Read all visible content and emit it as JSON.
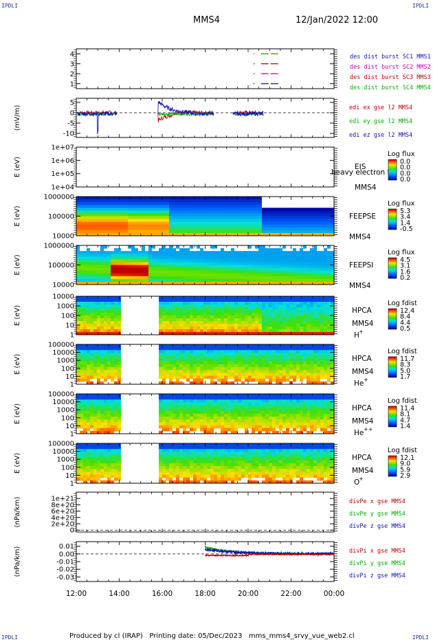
{
  "corners": {
    "tl": "IPDLI",
    "tr": "IPDLI",
    "bl": "IPDLI",
    "br": "IPDLI"
  },
  "header": {
    "spacecraft": "MMS4",
    "date_time": "12/Jan/2022 12:00"
  },
  "footer": {
    "produced_by": "Produced by cl (IRAP)",
    "printing_date": "Printing date: 05/Dec/2023",
    "script": "mms_mms4_srvy_vue_web2.cl"
  },
  "chart_data": [
    {
      "id": "burst",
      "type": "line",
      "ylim": [
        0.5,
        4.5
      ],
      "yticks": [
        "1",
        "2",
        "3",
        "4"
      ],
      "legend": [
        {
          "name": "des dist burst SC1 MMS1",
          "color": "#1010c0",
          "y": 1
        },
        {
          "name": "des dist burst SC2 MMS2",
          "color": "#c000c0",
          "y": 2
        },
        {
          "name": "des dist burst SC3 MMS3",
          "color": "#c00000",
          "y": 3
        },
        {
          "name": "des dist burst SC4 MMS4",
          "color": "#00b000",
          "y": 4
        }
      ],
      "segments": [
        {
          "y": 4,
          "color": "#00b000",
          "x": [
            [
              20.25,
              20.3
            ],
            [
              20.6,
              20.95
            ],
            [
              21.05,
              21.4
            ]
          ]
        },
        {
          "y": 3,
          "color": "#c00000",
          "x": [
            [
              20.25,
              20.3
            ],
            [
              20.6,
              20.95
            ],
            [
              21.05,
              21.4
            ]
          ]
        },
        {
          "y": 2,
          "color": "#c000c0",
          "x": [
            [
              20.25,
              20.3
            ],
            [
              20.6,
              20.95
            ],
            [
              21.05,
              21.4
            ]
          ]
        },
        {
          "y": 1,
          "color": "#1010c0",
          "x": [
            [
              20.25,
              20.3
            ],
            [
              20.6,
              20.95
            ],
            [
              21.05,
              21.4
            ]
          ]
        }
      ]
    },
    {
      "id": "edi",
      "type": "line",
      "ylabel": "(mV/m)",
      "ylim": [
        -12,
        7
      ],
      "yticks": [
        "-10",
        "-5",
        "0",
        "5"
      ],
      "zero_line": true,
      "legend": [
        {
          "name": "edi ex gse l2 MMS4",
          "color": "#c00000"
        },
        {
          "name": "edi ey gse l2 MMS4",
          "color": "#00b000"
        },
        {
          "name": "edi ez gse l2 MMS4",
          "color": "#1010c0"
        }
      ]
    },
    {
      "id": "eis",
      "type": "heatmap",
      "ylabel": "E (eV)",
      "yticks": [
        "1e+04",
        "1e+05",
        "1e+06",
        "1e+07"
      ],
      "instrument": "EIS",
      "spacecraft": "MMS4",
      "overlay": "heavy electron to",
      "cbar_title": "Log flux",
      "cbar_ticks": [
        "0.0",
        "0.0",
        "0.0",
        "0.0"
      ],
      "empty": true
    },
    {
      "id": "feepse",
      "type": "heatmap",
      "ylabel": "E (eV)",
      "yticks": [
        "10000",
        "100000",
        "1000000"
      ],
      "instrument": "FEEPSE",
      "spacecraft": "MMS4",
      "cbar_title": "Log flux",
      "cbar_ticks": [
        "5.3",
        "3.4",
        "1.4",
        "-0.5"
      ]
    },
    {
      "id": "feepsi",
      "type": "heatmap",
      "ylabel": "E (eV)",
      "yticks": [
        "10000",
        "100000",
        "1000000"
      ],
      "instrument": "FEEPSI",
      "spacecraft": "MMS4",
      "cbar_title": "Log flux",
      "cbar_ticks": [
        "4.5",
        "3.1",
        "1.6",
        "0.2"
      ]
    },
    {
      "id": "hpca-h",
      "type": "heatmap",
      "ylabel": "E (eV)",
      "yticks": [
        "1",
        "10",
        "100",
        "1000",
        "10000"
      ],
      "instrument": "HPCA",
      "spacecraft": "MMS4",
      "species": "H",
      "charge": "+",
      "cbar_title": "Log fdist",
      "cbar_ticks": [
        "12.4",
        "8.4",
        "4.4",
        "0.5"
      ],
      "gap": [
        14.05,
        15.8
      ]
    },
    {
      "id": "hpca-he",
      "type": "heatmap",
      "ylabel": "E (eV)",
      "yticks": [
        "1",
        "10",
        "100",
        "1000",
        "10000",
        "100000"
      ],
      "instrument": "HPCA",
      "spacecraft": "MMS4",
      "species": "He",
      "charge": "+",
      "cbar_title": "Log fdist",
      "cbar_ticks": [
        "11.7",
        "8.3",
        "5.0",
        "1.7"
      ],
      "gap": [
        14.05,
        15.8
      ]
    },
    {
      "id": "hpca-he2",
      "type": "heatmap",
      "ylabel": "E (eV)",
      "yticks": [
        "1",
        "10",
        "100",
        "1000",
        "10000",
        "100000"
      ],
      "instrument": "HPCA",
      "spacecraft": "MMS4",
      "species": "He",
      "charge": "++",
      "cbar_title": "Log fdist",
      "cbar_ticks": [
        "11.4",
        "8.1",
        "4.7",
        "1.4"
      ],
      "gap": [
        14.05,
        15.8
      ]
    },
    {
      "id": "hpca-o",
      "type": "heatmap",
      "ylabel": "E (eV)",
      "yticks": [
        "1",
        "10",
        "100",
        "1000",
        "10000",
        "100000"
      ],
      "instrument": "HPCA",
      "spacecraft": "MMS4",
      "species": "O",
      "charge": "+",
      "cbar_title": "Log fdist",
      "cbar_ticks": [
        "12.1",
        "9.0",
        "5.9",
        "2.9"
      ],
      "gap": [
        14.05,
        15.8
      ]
    },
    {
      "id": "divpe",
      "type": "line",
      "ylabel": "(nPa/km)",
      "ylim": [
        -6e+19,
        1.2e+21
      ],
      "yticks": [
        "0",
        "2e+20",
        "4e+20",
        "6e+20",
        "8e+20",
        "1e+21"
      ],
      "zero_line": true,
      "legend": [
        {
          "name": "divPe x gse MMS4",
          "color": "#c00000"
        },
        {
          "name": "divPe y gse MMS4",
          "color": "#00b000"
        },
        {
          "name": "divPe z gse MMS4",
          "color": "#1010c0"
        }
      ]
    },
    {
      "id": "divpi",
      "type": "line",
      "ylabel": "(nPa/km)",
      "ylim": [
        -0.036,
        0.016
      ],
      "yticks": [
        "-0.03",
        "-0.02",
        "-0.01",
        "0.00",
        "0.01"
      ],
      "zero_line": true,
      "legend": [
        {
          "name": "divPi x gse MMS4",
          "color": "#c00000"
        },
        {
          "name": "divPi y gse MMS4",
          "color": "#00b000"
        },
        {
          "name": "divPi z gse MMS4",
          "color": "#1010c0"
        }
      ]
    }
  ],
  "time_axis": {
    "range": [
      12,
      24
    ],
    "ticks": [
      "12:00",
      "14:00",
      "16:00",
      "18:00",
      "20:00",
      "22:00",
      "00:00"
    ]
  }
}
